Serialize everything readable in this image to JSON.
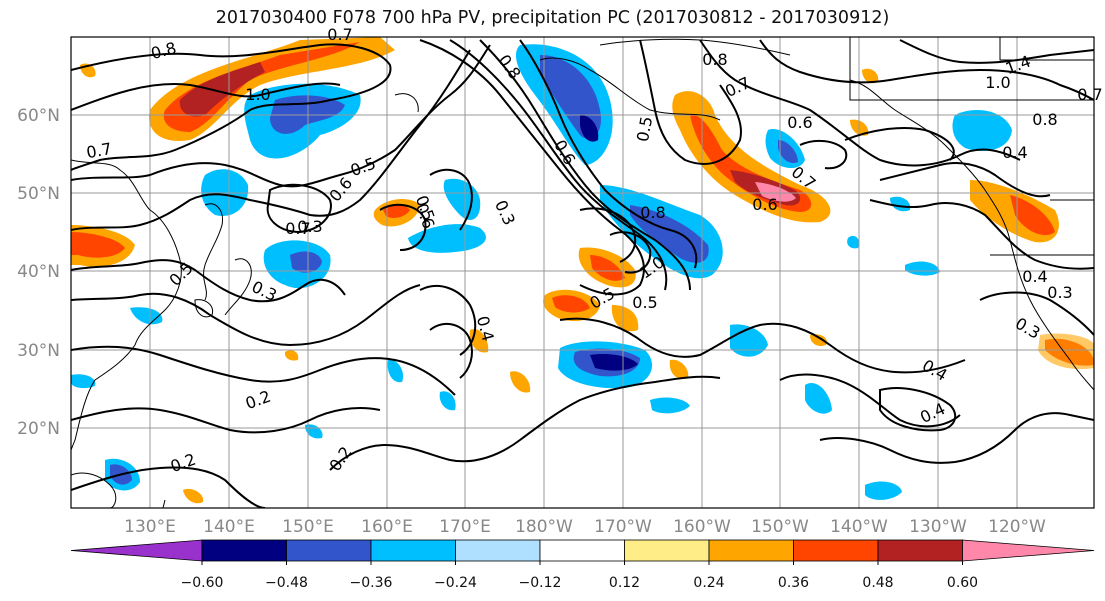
{
  "title": "2017030400 F078 700 hPa PV, precipitation PC (2017030812 - 2017030912)",
  "lat_labels": [
    "60°N",
    "50°N",
    "40°N",
    "30°N",
    "20°N"
  ],
  "lon_labels": [
    "130°E",
    "140°E",
    "150°E",
    "160°E",
    "170°E",
    "180°W",
    "170°W",
    "160°W",
    "150°W",
    "140°W",
    "130°W",
    "120°W"
  ],
  "colorbar": {
    "colors": [
      "#9932cc",
      "#000080",
      "#3355cc",
      "#00bfff",
      "#b0e0ff",
      "#ffffff",
      "#ffee88",
      "#ffa500",
      "#ff4500",
      "#b22222",
      "#ff88aa"
    ],
    "ticks": [
      "−0.60",
      "−0.48",
      "−0.36",
      "−0.24",
      "−0.12",
      "0.12",
      "0.24",
      "0.36",
      "0.48",
      "0.60"
    ]
  },
  "contour_labels": [
    "0.8",
    "0.7",
    "0.8",
    "1.0",
    "0.7",
    "0.8",
    "0.7",
    "1.4",
    "1.0",
    "0.8",
    "0.7",
    "0.5",
    "0.5",
    "0.6",
    "0.6",
    "0.4",
    "0.7",
    "0.6",
    "0.3",
    "0.6",
    "0.8",
    "1.0",
    "0.5",
    "0.4",
    "0.4",
    "0.3",
    "0.3",
    "0.5",
    "0.5",
    "0.3",
    "0.4",
    "0.2",
    "0.2",
    "0.2",
    "0.4",
    "0.5",
    "0.3",
    "0.6",
    "0.7"
  ]
}
